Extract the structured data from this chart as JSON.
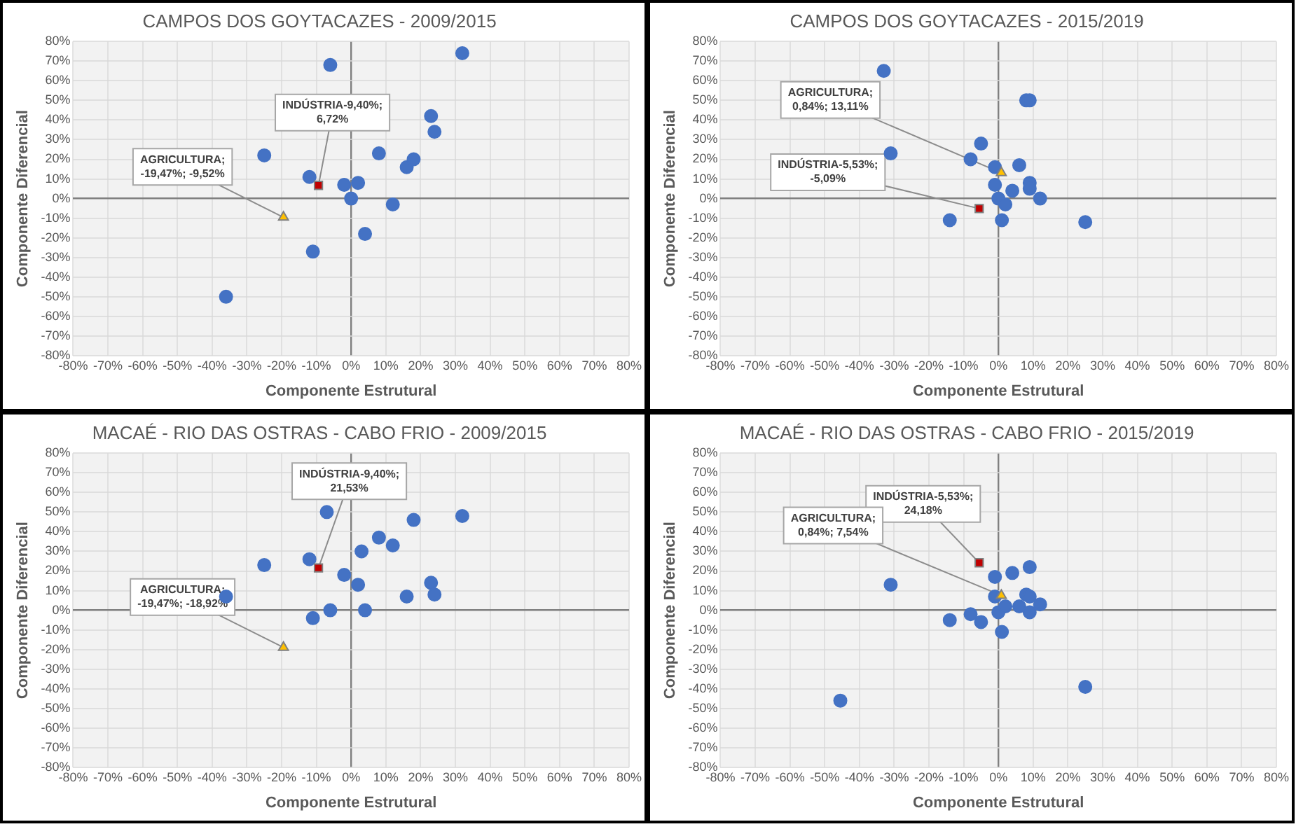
{
  "chart_data": [
    {
      "type": "scatter",
      "title": "CAMPOS DOS GOYTACAZES - 2009/2015",
      "xlabel": "Componente Estrutural",
      "ylabel": "Componente Diferencial",
      "grid": true,
      "legend": false,
      "xlim": [
        -80,
        80
      ],
      "ylim": [
        -80,
        80
      ],
      "xticks": [
        {
          "value": -80,
          "label": "-80%"
        },
        {
          "value": -70,
          "label": "-70%"
        },
        {
          "value": -60,
          "label": "-60%"
        },
        {
          "value": -50,
          "label": "-50%"
        },
        {
          "value": -40,
          "label": "-40%"
        },
        {
          "value": -30,
          "label": "-30%"
        },
        {
          "value": -20,
          "label": "-20%"
        },
        {
          "value": -10,
          "label": "-10%"
        },
        {
          "value": 0,
          "label": "0%"
        },
        {
          "value": 10,
          "label": "10%"
        },
        {
          "value": 20,
          "label": "20%"
        },
        {
          "value": 30,
          "label": "30%"
        },
        {
          "value": 40,
          "label": "40%"
        },
        {
          "value": 50,
          "label": "50%"
        },
        {
          "value": 60,
          "label": "60%"
        },
        {
          "value": 70,
          "label": "70%"
        },
        {
          "value": 80,
          "label": "80%"
        }
      ],
      "yticks": [
        {
          "value": -80,
          "label": "-80%"
        },
        {
          "value": -70,
          "label": "-70%"
        },
        {
          "value": -60,
          "label": "-60%"
        },
        {
          "value": -50,
          "label": "-50%"
        },
        {
          "value": -40,
          "label": "-40%"
        },
        {
          "value": -30,
          "label": "-30%"
        },
        {
          "value": -20,
          "label": "-20%"
        },
        {
          "value": -10,
          "label": "-10%"
        },
        {
          "value": 0,
          "label": "0%"
        },
        {
          "value": 10,
          "label": "10%"
        },
        {
          "value": 20,
          "label": "20%"
        },
        {
          "value": 30,
          "label": "30%"
        },
        {
          "value": 40,
          "label": "40%"
        },
        {
          "value": 50,
          "label": "50%"
        },
        {
          "value": 60,
          "label": "60%"
        },
        {
          "value": 70,
          "label": "70%"
        },
        {
          "value": 80,
          "label": "80%"
        }
      ],
      "series": [
        {
          "color": "#4472c4",
          "marker": "circle",
          "x": [
            -6,
            32,
            -25,
            -12,
            -2,
            2,
            0,
            8,
            12,
            4,
            -11,
            -36,
            16,
            18,
            23,
            24
          ],
          "values": [
            68,
            74,
            22,
            11,
            7,
            8,
            0,
            23,
            -3,
            -18,
            -27,
            -50,
            16,
            20,
            42,
            34
          ]
        },
        {
          "color": "#c00000",
          "marker": "square",
          "x": [
            -9.4
          ],
          "values": [
            6.72
          ]
        },
        {
          "color": "#ffc000",
          "marker": "triangle",
          "x": [
            -19.47
          ],
          "values": [
            -9.52
          ]
        }
      ],
      "annotations": [
        {
          "text": "INDÚSTRIA-9,40%; 6,72%",
          "x": -9.4,
          "y": 6.72
        },
        {
          "text": "AGRICULTURA; -19,47%; -9,52%",
          "x": -19.47,
          "y": -9.52
        }
      ]
    },
    {
      "type": "scatter",
      "title": "CAMPOS DOS GOYTACAZES - 2015/2019",
      "xlabel": "Componente Estrutural",
      "ylabel": "Componente Diferencial",
      "grid": true,
      "legend": false,
      "xlim": [
        -80,
        80
      ],
      "ylim": [
        -80,
        80
      ],
      "xticks": [
        {
          "value": -80,
          "label": "-80%"
        },
        {
          "value": -70,
          "label": "-70%"
        },
        {
          "value": -60,
          "label": "-60%"
        },
        {
          "value": -50,
          "label": "-50%"
        },
        {
          "value": -40,
          "label": "-40%"
        },
        {
          "value": -30,
          "label": "-30%"
        },
        {
          "value": -20,
          "label": "-20%"
        },
        {
          "value": -10,
          "label": "-10%"
        },
        {
          "value": 0,
          "label": "0%"
        },
        {
          "value": 10,
          "label": "10%"
        },
        {
          "value": 20,
          "label": "20%"
        },
        {
          "value": 30,
          "label": "30%"
        },
        {
          "value": 40,
          "label": "40%"
        },
        {
          "value": 50,
          "label": "50%"
        },
        {
          "value": 60,
          "label": "60%"
        },
        {
          "value": 70,
          "label": "70%"
        },
        {
          "value": 80,
          "label": "80%"
        }
      ],
      "yticks": [
        {
          "value": -80,
          "label": "-80%"
        },
        {
          "value": -70,
          "label": "-70%"
        },
        {
          "value": -60,
          "label": "-60%"
        },
        {
          "value": -50,
          "label": "-50%"
        },
        {
          "value": -40,
          "label": "-40%"
        },
        {
          "value": -30,
          "label": "-30%"
        },
        {
          "value": -20,
          "label": "-20%"
        },
        {
          "value": -10,
          "label": "-10%"
        },
        {
          "value": 0,
          "label": "0%"
        },
        {
          "value": 10,
          "label": "10%"
        },
        {
          "value": 20,
          "label": "20%"
        },
        {
          "value": 30,
          "label": "30%"
        },
        {
          "value": 40,
          "label": "40%"
        },
        {
          "value": 50,
          "label": "50%"
        },
        {
          "value": 60,
          "label": "60%"
        },
        {
          "value": 70,
          "label": "70%"
        },
        {
          "value": 80,
          "label": "80%"
        }
      ],
      "series": [
        {
          "color": "#4472c4",
          "marker": "circle",
          "x": [
            -33,
            -31,
            -5,
            -8,
            -1,
            -1,
            0,
            2,
            4,
            6,
            8,
            9,
            9,
            9,
            12,
            -14,
            1,
            25
          ],
          "values": [
            65,
            23,
            28,
            20,
            16,
            7,
            0,
            -3,
            4,
            17,
            50,
            50,
            8,
            5,
            0,
            -11,
            -11,
            -12
          ]
        },
        {
          "color": "#c00000",
          "marker": "square",
          "x": [
            -5.53
          ],
          "values": [
            -5.09
          ]
        },
        {
          "color": "#ffc000",
          "marker": "triangle",
          "x": [
            0.84
          ],
          "values": [
            13.11
          ]
        }
      ],
      "annotations": [
        {
          "text": "INDÚSTRIA-5,53%; -5,09%",
          "x": -5.53,
          "y": -5.09
        },
        {
          "text": "AGRICULTURA; 0,84%; 13,11%",
          "x": 0.84,
          "y": 13.11
        }
      ]
    },
    {
      "type": "scatter",
      "title": "MACAÉ - RIO DAS OSTRAS - CABO FRIO - 2009/2015",
      "xlabel": "Componente Estrutural",
      "ylabel": "Componente Diferencial",
      "grid": true,
      "legend": false,
      "xlim": [
        -80,
        80
      ],
      "ylim": [
        -80,
        80
      ],
      "xticks": [
        {
          "value": -80,
          "label": "-80%"
        },
        {
          "value": -70,
          "label": "-70%"
        },
        {
          "value": -60,
          "label": "-60%"
        },
        {
          "value": -50,
          "label": "-50%"
        },
        {
          "value": -40,
          "label": "-40%"
        },
        {
          "value": -30,
          "label": "-30%"
        },
        {
          "value": -20,
          "label": "-20%"
        },
        {
          "value": -10,
          "label": "-10%"
        },
        {
          "value": 0,
          "label": "0%"
        },
        {
          "value": 10,
          "label": "10%"
        },
        {
          "value": 20,
          "label": "20%"
        },
        {
          "value": 30,
          "label": "30%"
        },
        {
          "value": 40,
          "label": "40%"
        },
        {
          "value": 50,
          "label": "50%"
        },
        {
          "value": 60,
          "label": "60%"
        },
        {
          "value": 70,
          "label": "70%"
        },
        {
          "value": 80,
          "label": "80%"
        }
      ],
      "yticks": [
        {
          "value": -80,
          "label": "-80%"
        },
        {
          "value": -70,
          "label": "-70%"
        },
        {
          "value": -60,
          "label": "-60%"
        },
        {
          "value": -50,
          "label": "-50%"
        },
        {
          "value": -40,
          "label": "-40%"
        },
        {
          "value": -30,
          "label": "-30%"
        },
        {
          "value": -20,
          "label": "-20%"
        },
        {
          "value": -10,
          "label": "-10%"
        },
        {
          "value": 0,
          "label": "0%"
        },
        {
          "value": 10,
          "label": "10%"
        },
        {
          "value": 20,
          "label": "20%"
        },
        {
          "value": 30,
          "label": "30%"
        },
        {
          "value": 40,
          "label": "40%"
        },
        {
          "value": 50,
          "label": "50%"
        },
        {
          "value": 60,
          "label": "60%"
        },
        {
          "value": 70,
          "label": "70%"
        },
        {
          "value": 80,
          "label": "80%"
        }
      ],
      "series": [
        {
          "color": "#4472c4",
          "marker": "circle",
          "x": [
            -7,
            18,
            32,
            8,
            12,
            3,
            -12,
            -25,
            -2,
            2,
            23,
            24,
            16,
            -36,
            -6,
            4,
            -11
          ],
          "values": [
            50,
            46,
            48,
            37,
            33,
            30,
            26,
            23,
            18,
            13,
            14,
            8,
            7,
            7,
            0,
            0,
            -4
          ]
        },
        {
          "color": "#c00000",
          "marker": "square",
          "x": [
            -9.4
          ],
          "values": [
            21.53
          ]
        },
        {
          "color": "#ffc000",
          "marker": "triangle",
          "x": [
            -19.47
          ],
          "values": [
            -18.92
          ]
        }
      ],
      "annotations": [
        {
          "text": "INDÚSTRIA-9,40%; 21,53%",
          "x": -9.4,
          "y": 21.53
        },
        {
          "text": "AGRICULTURA; -19,47%; -18,92%",
          "x": -19.47,
          "y": -18.92
        }
      ]
    },
    {
      "type": "scatter",
      "title": "MACAÉ - RIO DAS OSTRAS - CABO FRIO - 2015/2019",
      "xlabel": "Componente Estrutural",
      "ylabel": "Componente Diferencial",
      "grid": true,
      "legend": false,
      "xlim": [
        -80,
        80
      ],
      "ylim": [
        -80,
        80
      ],
      "xticks": [
        {
          "value": -80,
          "label": "-80%"
        },
        {
          "value": -70,
          "label": "-70%"
        },
        {
          "value": -60,
          "label": "-60%"
        },
        {
          "value": -50,
          "label": "-50%"
        },
        {
          "value": -40,
          "label": "-40%"
        },
        {
          "value": -30,
          "label": "-30%"
        },
        {
          "value": -20,
          "label": "-20%"
        },
        {
          "value": -10,
          "label": "-10%"
        },
        {
          "value": 0,
          "label": "0%"
        },
        {
          "value": 10,
          "label": "10%"
        },
        {
          "value": 20,
          "label": "20%"
        },
        {
          "value": 30,
          "label": "30%"
        },
        {
          "value": 40,
          "label": "40%"
        },
        {
          "value": 50,
          "label": "50%"
        },
        {
          "value": 60,
          "label": "60%"
        },
        {
          "value": 70,
          "label": "70%"
        },
        {
          "value": 80,
          "label": "80%"
        }
      ],
      "yticks": [
        {
          "value": -80,
          "label": "-80%"
        },
        {
          "value": -70,
          "label": "-70%"
        },
        {
          "value": -60,
          "label": "-60%"
        },
        {
          "value": -50,
          "label": "-50%"
        },
        {
          "value": -40,
          "label": "-40%"
        },
        {
          "value": -30,
          "label": "-30%"
        },
        {
          "value": -20,
          "label": "-20%"
        },
        {
          "value": -10,
          "label": "-10%"
        },
        {
          "value": 0,
          "label": "0%"
        },
        {
          "value": 10,
          "label": "10%"
        },
        {
          "value": 20,
          "label": "20%"
        },
        {
          "value": 30,
          "label": "30%"
        },
        {
          "value": 40,
          "label": "40%"
        },
        {
          "value": 50,
          "label": "50%"
        },
        {
          "value": 60,
          "label": "60%"
        },
        {
          "value": 70,
          "label": "70%"
        },
        {
          "value": 80,
          "label": "80%"
        }
      ],
      "series": [
        {
          "color": "#4472c4",
          "marker": "circle",
          "x": [
            -45.5,
            -31,
            -14,
            -8,
            -5,
            -1,
            -1,
            0,
            1,
            2,
            4,
            6,
            8,
            9,
            9,
            9,
            12,
            25
          ],
          "values": [
            -46,
            13,
            -5,
            -2,
            -6,
            17,
            7,
            -1,
            -11,
            2,
            19,
            2,
            8,
            7,
            22,
            -1,
            3,
            -39
          ]
        },
        {
          "color": "#c00000",
          "marker": "square",
          "x": [
            -5.53
          ],
          "values": [
            24.18
          ]
        },
        {
          "color": "#ffc000",
          "marker": "triangle",
          "x": [
            0.84
          ],
          "values": [
            7.54
          ]
        }
      ],
      "annotations": [
        {
          "text": "INDÚSTRIA-5,53%; 24,18%",
          "x": -5.53,
          "y": 24.18
        },
        {
          "text": "AGRICULTURA; 0,84%; 7,54%",
          "x": 0.84,
          "y": 7.54
        }
      ]
    }
  ]
}
